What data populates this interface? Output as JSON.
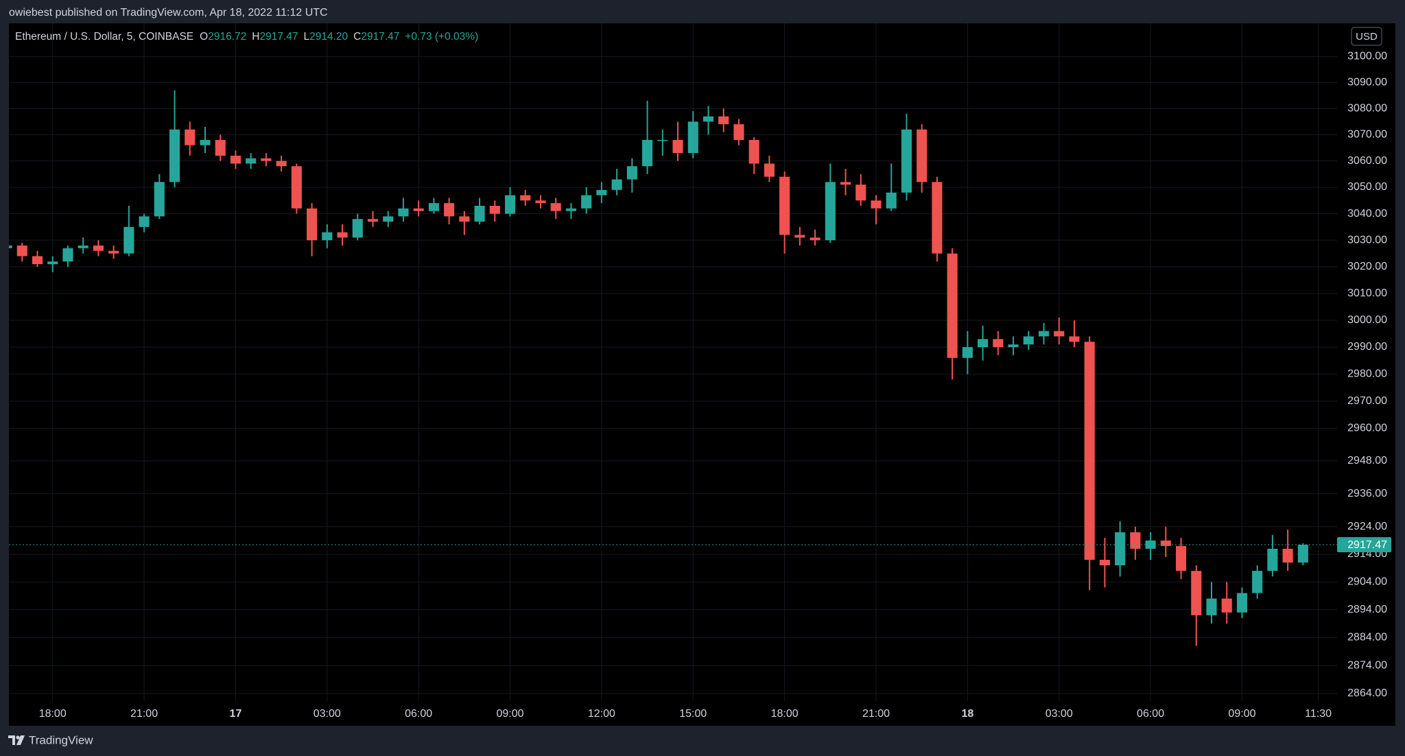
{
  "header": {
    "published": "owiebest published on TradingView.com, Apr 18, 2022 11:12 UTC"
  },
  "footer": {
    "brand": "TradingView"
  },
  "chart_data": {
    "type": "candlestick",
    "symbol": "Ethereum / U.S. Dollar, 5, COINBASE",
    "legend": [
      {
        "key": "O",
        "value": "2916.72"
      },
      {
        "key": "H",
        "value": "2917.47"
      },
      {
        "key": "L",
        "value": "2914.20"
      },
      {
        "key": "C",
        "value": "2917.47"
      }
    ],
    "change": "+0.73 (+0.03%)",
    "currency": "USD",
    "last_price": 2917.47,
    "up_color": "#26a69a",
    "down_color": "#ef5350",
    "log_scale": true,
    "grid": true,
    "xlim": [
      "2022-04-16T16:34",
      "2022-04-18T12:07"
    ],
    "ylim": [
      2861.3,
      3112.8
    ],
    "xticks": [
      {
        "value": "2022-04-16T18:00",
        "label": "18:00"
      },
      {
        "value": "2022-04-16T21:00",
        "label": "21:00"
      },
      {
        "value": "2022-04-17T00:00",
        "label": "17"
      },
      {
        "value": "2022-04-17T03:00",
        "label": "03:00"
      },
      {
        "value": "2022-04-17T06:00",
        "label": "06:00"
      },
      {
        "value": "2022-04-17T09:00",
        "label": "09:00"
      },
      {
        "value": "2022-04-17T12:00",
        "label": "12:00"
      },
      {
        "value": "2022-04-17T15:00",
        "label": "15:00"
      },
      {
        "value": "2022-04-17T18:00",
        "label": "18:00"
      },
      {
        "value": "2022-04-17T21:00",
        "label": "21:00"
      },
      {
        "value": "2022-04-18T00:00",
        "label": "18"
      },
      {
        "value": "2022-04-18T03:00",
        "label": "03:00"
      },
      {
        "value": "2022-04-18T06:00",
        "label": "06:00"
      },
      {
        "value": "2022-04-18T09:00",
        "label": "09:00"
      },
      {
        "value": "2022-04-18T11:30",
        "label": "11:30"
      }
    ],
    "yticks": [
      {
        "value": 3100,
        "label": "3100.00"
      },
      {
        "value": 3090,
        "label": "3090.00"
      },
      {
        "value": 3080,
        "label": "3080.00"
      },
      {
        "value": 3070,
        "label": "3070.00"
      },
      {
        "value": 3060,
        "label": "3060.00"
      },
      {
        "value": 3050,
        "label": "3050.00"
      },
      {
        "value": 3040,
        "label": "3040.00"
      },
      {
        "value": 3030,
        "label": "3030.00"
      },
      {
        "value": 3020,
        "label": "3020.00"
      },
      {
        "value": 3010,
        "label": "3010.00"
      },
      {
        "value": 3000,
        "label": "3000.00"
      },
      {
        "value": 2990,
        "label": "2990.00"
      },
      {
        "value": 2980,
        "label": "2980.00"
      },
      {
        "value": 2970,
        "label": "2970.00"
      },
      {
        "value": 2960,
        "label": "2960.00"
      },
      {
        "value": 2948,
        "label": "2948.00"
      },
      {
        "value": 2936,
        "label": "2936.00"
      },
      {
        "value": 2924,
        "label": "2924.00"
      },
      {
        "value": 2914,
        "label": "2914.00"
      },
      {
        "value": 2904,
        "label": "2904.00"
      },
      {
        "value": 2894,
        "label": "2894.00"
      },
      {
        "value": 2884,
        "label": "2884.00"
      },
      {
        "value": 2874,
        "label": "2874.00"
      },
      {
        "value": 2864,
        "label": "2864.00"
      }
    ],
    "x": [
      "2022-04-16T16:30",
      "2022-04-16T17:00",
      "2022-04-16T17:30",
      "2022-04-16T18:00",
      "2022-04-16T18:30",
      "2022-04-16T19:00",
      "2022-04-16T19:30",
      "2022-04-16T20:00",
      "2022-04-16T20:30",
      "2022-04-16T21:00",
      "2022-04-16T21:30",
      "2022-04-16T22:00",
      "2022-04-16T22:30",
      "2022-04-16T23:00",
      "2022-04-16T23:30",
      "2022-04-17T00:00",
      "2022-04-17T00:30",
      "2022-04-17T01:00",
      "2022-04-17T01:30",
      "2022-04-17T02:00",
      "2022-04-17T02:30",
      "2022-04-17T03:00",
      "2022-04-17T03:30",
      "2022-04-17T04:00",
      "2022-04-17T04:30",
      "2022-04-17T05:00",
      "2022-04-17T05:30",
      "2022-04-17T06:00",
      "2022-04-17T06:30",
      "2022-04-17T07:00",
      "2022-04-17T07:30",
      "2022-04-17T08:00",
      "2022-04-17T08:30",
      "2022-04-17T09:00",
      "2022-04-17T09:30",
      "2022-04-17T10:00",
      "2022-04-17T10:30",
      "2022-04-17T11:00",
      "2022-04-17T11:30",
      "2022-04-17T12:00",
      "2022-04-17T12:30",
      "2022-04-17T13:00",
      "2022-04-17T13:30",
      "2022-04-17T14:00",
      "2022-04-17T14:30",
      "2022-04-17T15:00",
      "2022-04-17T15:30",
      "2022-04-17T16:00",
      "2022-04-17T16:30",
      "2022-04-17T17:00",
      "2022-04-17T17:30",
      "2022-04-17T18:00",
      "2022-04-17T18:30",
      "2022-04-17T19:00",
      "2022-04-17T19:30",
      "2022-04-17T20:00",
      "2022-04-17T20:30",
      "2022-04-17T21:00",
      "2022-04-17T21:30",
      "2022-04-17T22:00",
      "2022-04-17T22:30",
      "2022-04-17T23:00",
      "2022-04-17T23:30",
      "2022-04-18T00:00",
      "2022-04-18T00:30",
      "2022-04-18T01:00",
      "2022-04-18T01:30",
      "2022-04-18T02:00",
      "2022-04-18T02:30",
      "2022-04-18T03:00",
      "2022-04-18T03:30",
      "2022-04-18T04:00",
      "2022-04-18T04:30",
      "2022-04-18T05:00",
      "2022-04-18T05:30",
      "2022-04-18T06:00",
      "2022-04-18T06:30",
      "2022-04-18T07:00",
      "2022-04-18T07:30",
      "2022-04-18T08:00",
      "2022-04-18T08:30",
      "2022-04-18T09:00",
      "2022-04-18T09:30",
      "2022-04-18T10:00",
      "2022-04-18T10:30",
      "2022-04-18T11:00"
    ],
    "ohlc": [
      [
        3027,
        3030,
        3025,
        3028
      ],
      [
        3028,
        3029,
        3022,
        3024
      ],
      [
        3024,
        3026,
        3020,
        3021
      ],
      [
        3021,
        3024,
        3018,
        3022
      ],
      [
        3022,
        3028,
        3020,
        3027
      ],
      [
        3027,
        3031,
        3025,
        3028
      ],
      [
        3028,
        3030,
        3024,
        3026
      ],
      [
        3026,
        3028,
        3023,
        3025
      ],
      [
        3025,
        3043,
        3024,
        3035
      ],
      [
        3035,
        3040,
        3033,
        3039
      ],
      [
        3039,
        3055,
        3038,
        3052
      ],
      [
        3052,
        3087,
        3050,
        3072
      ],
      [
        3072,
        3075,
        3062,
        3066
      ],
      [
        3066,
        3073,
        3063,
        3068
      ],
      [
        3068,
        3070,
        3060,
        3062
      ],
      [
        3062,
        3064,
        3057,
        3059
      ],
      [
        3059,
        3063,
        3057,
        3061
      ],
      [
        3061,
        3063,
        3058,
        3060
      ],
      [
        3060,
        3062,
        3056,
        3058
      ],
      [
        3058,
        3059,
        3040,
        3042
      ],
      [
        3042,
        3044,
        3024,
        3030
      ],
      [
        3030,
        3036,
        3027,
        3033
      ],
      [
        3033,
        3036,
        3028,
        3031
      ],
      [
        3031,
        3040,
        3030,
        3038
      ],
      [
        3038,
        3041,
        3035,
        3037
      ],
      [
        3037,
        3041,
        3035,
        3039
      ],
      [
        3039,
        3046,
        3037,
        3042
      ],
      [
        3042,
        3045,
        3039,
        3041
      ],
      [
        3041,
        3046,
        3040,
        3044
      ],
      [
        3044,
        3046,
        3036,
        3039
      ],
      [
        3039,
        3041,
        3032,
        3037
      ],
      [
        3037,
        3046,
        3036,
        3043
      ],
      [
        3043,
        3045,
        3037,
        3040
      ],
      [
        3040,
        3050,
        3039,
        3047
      ],
      [
        3047,
        3049,
        3043,
        3045
      ],
      [
        3045,
        3047,
        3042,
        3044
      ],
      [
        3044,
        3046,
        3038,
        3041
      ],
      [
        3041,
        3044,
        3038,
        3042
      ],
      [
        3042,
        3050,
        3040,
        3047
      ],
      [
        3047,
        3052,
        3044,
        3049
      ],
      [
        3049,
        3057,
        3047,
        3053
      ],
      [
        3053,
        3061,
        3048,
        3058
      ],
      [
        3058,
        3083,
        3055,
        3068
      ],
      [
        3068,
        3072,
        3062,
        3068
      ],
      [
        3068,
        3075,
        3060,
        3063
      ],
      [
        3063,
        3079,
        3061,
        3075
      ],
      [
        3075,
        3081,
        3070,
        3077
      ],
      [
        3077,
        3080,
        3071,
        3074
      ],
      [
        3074,
        3076,
        3066,
        3068
      ],
      [
        3068,
        3069,
        3055,
        3059
      ],
      [
        3059,
        3062,
        3052,
        3054
      ],
      [
        3054,
        3056,
        3025,
        3032
      ],
      [
        3032,
        3035,
        3028,
        3031
      ],
      [
        3031,
        3034,
        3028,
        3030
      ],
      [
        3030,
        3059,
        3029,
        3052
      ],
      [
        3052,
        3057,
        3047,
        3051
      ],
      [
        3051,
        3055,
        3043,
        3045
      ],
      [
        3045,
        3047,
        3036,
        3042
      ],
      [
        3042,
        3059,
        3041,
        3048
      ],
      [
        3048,
        3078,
        3045,
        3072
      ],
      [
        3072,
        3074,
        3048,
        3052
      ],
      [
        3052,
        3054,
        3022,
        3025
      ],
      [
        3025,
        3027,
        2978,
        2986
      ],
      [
        2986,
        2996,
        2980,
        2990
      ],
      [
        2990,
        2998,
        2985,
        2993
      ],
      [
        2993,
        2996,
        2987,
        2990
      ],
      [
        2990,
        2994,
        2987,
        2991
      ],
      [
        2991,
        2996,
        2989,
        2994
      ],
      [
        2994,
        2999,
        2991,
        2996
      ],
      [
        2996,
        3001,
        2991,
        2994
      ],
      [
        2994,
        3000,
        2990,
        2992
      ],
      [
        2992,
        2994,
        2901,
        2912
      ],
      [
        2912,
        2920,
        2902,
        2910
      ],
      [
        2910,
        2926,
        2906,
        2922
      ],
      [
        2922,
        2924,
        2912,
        2916
      ],
      [
        2916,
        2922,
        2912,
        2919
      ],
      [
        2919,
        2924,
        2913,
        2917
      ],
      [
        2917,
        2920,
        2905,
        2908
      ],
      [
        2908,
        2910,
        2881,
        2892
      ],
      [
        2892,
        2904,
        2889,
        2898
      ],
      [
        2898,
        2904,
        2889,
        2893
      ],
      [
        2893,
        2902,
        2891,
        2900
      ],
      [
        2900,
        2910,
        2898,
        2908
      ],
      [
        2908,
        2921,
        2906,
        2916
      ],
      [
        2916,
        2923,
        2908,
        2911
      ],
      [
        2911,
        2918,
        2910,
        2917.47
      ]
    ]
  }
}
